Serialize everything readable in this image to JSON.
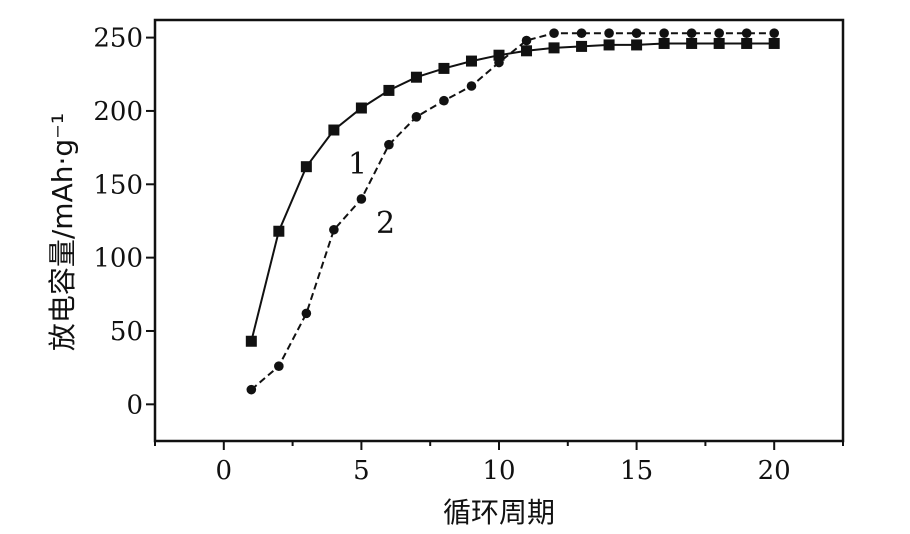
{
  "chart_data": {
    "type": "line",
    "title": "",
    "xlabel": "循环周期",
    "ylabel": "放电容量/mAh·g⁻¹",
    "xlim": [
      -2.5,
      22.5
    ],
    "ylim": [
      -25,
      262
    ],
    "xticks": [
      0,
      5,
      10,
      15,
      20
    ],
    "yticks": [
      0,
      50,
      100,
      150,
      200,
      250
    ],
    "x_tick_labels": [
      "0",
      "5",
      "10",
      "15",
      "20"
    ],
    "y_tick_labels": [
      "0",
      "50",
      "100",
      "150",
      "200",
      "250"
    ],
    "grid": false,
    "legend": "none",
    "series": [
      {
        "name": "1",
        "marker": "square",
        "line_style": "solid",
        "color": "#111111",
        "x": [
          1,
          2,
          3,
          4,
          5,
          6,
          7,
          8,
          9,
          10,
          11,
          12,
          13,
          14,
          15,
          16,
          17,
          18,
          19,
          20
        ],
        "values": [
          43,
          118,
          162,
          187,
          202,
          214,
          223,
          229,
          234,
          238,
          241,
          243,
          244,
          245,
          245,
          246,
          246,
          246,
          246,
          246
        ]
      },
      {
        "name": "2",
        "marker": "circle",
        "line_style": "dashed",
        "color": "#111111",
        "x": [
          1,
          2,
          3,
          4,
          5,
          6,
          7,
          8,
          9,
          10,
          11,
          12,
          13,
          14,
          15,
          16,
          17,
          18,
          19,
          20
        ],
        "values": [
          10,
          26,
          62,
          119,
          140,
          177,
          196,
          207,
          217,
          233,
          248,
          253,
          253,
          253,
          253,
          253,
          253,
          253,
          253,
          253
        ]
      }
    ],
    "annotations": [
      {
        "text": "1",
        "series": 0
      },
      {
        "text": "2",
        "series": 1
      }
    ]
  }
}
